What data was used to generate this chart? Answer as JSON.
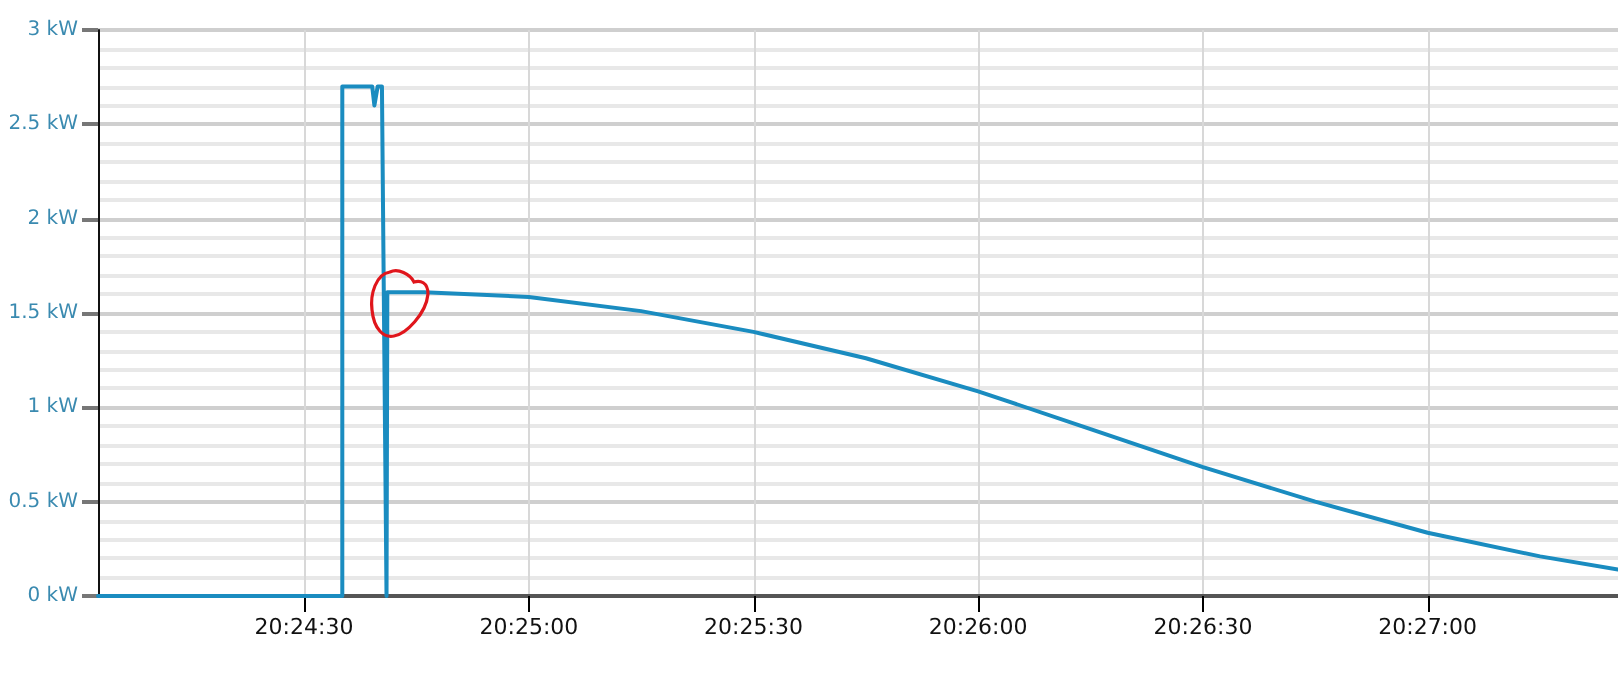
{
  "chart_data": {
    "type": "line",
    "x": [
      20.40069,
      20.40975,
      20.40975,
      20.41086,
      20.41094,
      20.41106,
      20.41122,
      20.41139,
      20.41142,
      20.41278,
      20.41667,
      20.42083,
      20.425,
      20.42917,
      20.43333,
      20.4375,
      20.44167,
      20.44583,
      20.45,
      20.45417,
      20.45706
    ],
    "series": [
      {
        "color": "#1a8cc0",
        "values": [
          0,
          0,
          2.7,
          2.7,
          2.6,
          2.7,
          2.7,
          0,
          1.61,
          1.61,
          1.585,
          1.51,
          1.4,
          1.26,
          1.085,
          0.885,
          0.683,
          0.5,
          0.335,
          0.21,
          0.14
        ]
      }
    ],
    "xlim": [
      20.40069,
      20.45706
    ],
    "xticks": [
      {
        "value": 20.40833,
        "label": "20:24:30"
      },
      {
        "value": 20.41667,
        "label": "20:25:00"
      },
      {
        "value": 20.425,
        "label": "20:25:30"
      },
      {
        "value": 20.43333,
        "label": "20:26:00"
      },
      {
        "value": 20.44167,
        "label": "20:26:30"
      },
      {
        "value": 20.45,
        "label": "20:27:00"
      }
    ],
    "ylim": [
      0,
      3
    ],
    "yticks": [
      {
        "value": 0,
        "label": "0 kW"
      },
      {
        "value": 0.5,
        "label": "0.5 kW"
      },
      {
        "value": 1,
        "label": "1 kW"
      },
      {
        "value": 1.5,
        "label": "1.5 kW"
      },
      {
        "value": 2,
        "label": "2 kW"
      },
      {
        "value": 2.5,
        "label": "2.5 kW"
      },
      {
        "value": 3,
        "label": "3 kW"
      }
    ],
    "grid": true,
    "marker": "none",
    "line_style": "solid"
  }
}
